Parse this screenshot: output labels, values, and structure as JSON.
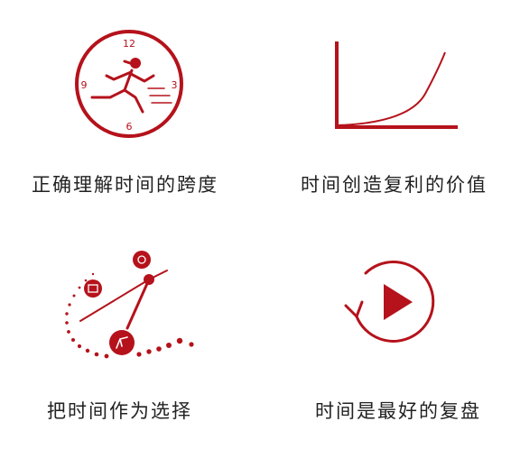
{
  "accent_color": "#b5121b",
  "text_color": "#222222",
  "cards": [
    {
      "caption": "正确理解时间的跨度",
      "icon": "clock-running-man-icon",
      "clock_numbers": {
        "top": "12",
        "right": "3",
        "bottom": "6",
        "left": "9"
      }
    },
    {
      "caption": "时间创造复利的价值",
      "icon": "compound-growth-curve-icon"
    },
    {
      "caption": "把时间作为选择",
      "icon": "clock-hands-choice-icon"
    },
    {
      "caption": "时间是最好的复盘",
      "icon": "replay-cycle-icon"
    }
  ]
}
